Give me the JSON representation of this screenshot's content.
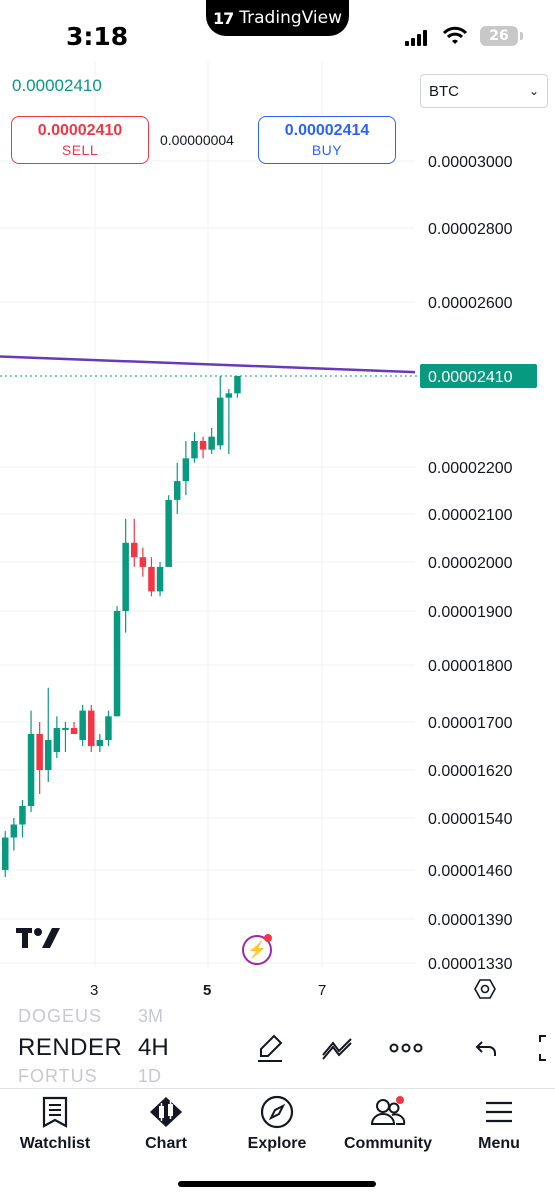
{
  "status_bar": {
    "time": "3:18",
    "island_brand": "TradingView",
    "battery": "26"
  },
  "header": {
    "last_price": "0.00002410",
    "currency": "BTC",
    "sell_price": "0.00002410",
    "sell_label": "SELL",
    "spread": "0.00000004",
    "buy_price": "0.00002414",
    "buy_label": "BUY"
  },
  "chart_data": {
    "type": "candlestick",
    "price_axis_labels": [
      "0.00003000",
      "0.00002800",
      "0.00002600",
      "0.00002200",
      "0.00002100",
      "0.00002000",
      "0.00001900",
      "0.00001800",
      "0.00001700",
      "0.00001620",
      "0.00001540",
      "0.00001460",
      "0.00001390",
      "0.00001330"
    ],
    "current_price_label": "0.00002410",
    "x_tick_labels": [
      "3",
      "5",
      "7"
    ],
    "colors": {
      "up": "#089981",
      "down": "#f23645",
      "trendline": "#673ab7",
      "price_badge": "#089981"
    },
    "trendline": {
      "start": 2.46e-05,
      "end": 2.42e-05
    },
    "candles": [
      {
        "o": 1.46e-05,
        "h": 1.52e-05,
        "l": 1.45e-05,
        "c": 1.51e-05
      },
      {
        "o": 1.51e-05,
        "h": 1.54e-05,
        "l": 1.49e-05,
        "c": 1.53e-05
      },
      {
        "o": 1.53e-05,
        "h": 1.57e-05,
        "l": 1.51e-05,
        "c": 1.56e-05
      },
      {
        "o": 1.56e-05,
        "h": 1.72e-05,
        "l": 1.55e-05,
        "c": 1.68e-05
      },
      {
        "o": 1.68e-05,
        "h": 1.7e-05,
        "l": 1.58e-05,
        "c": 1.62e-05
      },
      {
        "o": 1.62e-05,
        "h": 1.76e-05,
        "l": 1.6e-05,
        "c": 1.67e-05
      },
      {
        "o": 1.65e-05,
        "h": 1.71e-05,
        "l": 1.64e-05,
        "c": 1.69e-05
      },
      {
        "o": 1.69e-05,
        "h": 1.7e-05,
        "l": 1.65e-05,
        "c": 1.69e-05
      },
      {
        "o": 1.69e-05,
        "h": 1.7e-05,
        "l": 1.68e-05,
        "c": 1.68e-05
      },
      {
        "o": 1.67e-05,
        "h": 1.73e-05,
        "l": 1.66e-05,
        "c": 1.72e-05
      },
      {
        "o": 1.72e-05,
        "h": 1.73e-05,
        "l": 1.65e-05,
        "c": 1.66e-05
      },
      {
        "o": 1.66e-05,
        "h": 1.68e-05,
        "l": 1.65e-05,
        "c": 1.67e-05
      },
      {
        "o": 1.67e-05,
        "h": 1.72e-05,
        "l": 1.66e-05,
        "c": 1.71e-05
      },
      {
        "o": 1.71e-05,
        "h": 1.91e-05,
        "l": 1.71e-05,
        "c": 1.9e-05
      },
      {
        "o": 1.9e-05,
        "h": 2.09e-05,
        "l": 1.86e-05,
        "c": 2.04e-05
      },
      {
        "o": 2.04e-05,
        "h": 2.09e-05,
        "l": 1.99e-05,
        "c": 2.01e-05
      },
      {
        "o": 2.01e-05,
        "h": 2.03e-05,
        "l": 1.97e-05,
        "c": 1.99e-05
      },
      {
        "o": 1.99e-05,
        "h": 2.01e-05,
        "l": 1.93e-05,
        "c": 1.94e-05
      },
      {
        "o": 1.94e-05,
        "h": 2e-05,
        "l": 1.93e-05,
        "c": 1.99e-05
      },
      {
        "o": 1.99e-05,
        "h": 2.14e-05,
        "l": 1.99e-05,
        "c": 2.13e-05
      },
      {
        "o": 2.13e-05,
        "h": 2.21e-05,
        "l": 2.1e-05,
        "c": 2.17e-05
      },
      {
        "o": 2.17e-05,
        "h": 2.26e-05,
        "l": 2.14e-05,
        "c": 2.22e-05
      },
      {
        "o": 2.22e-05,
        "h": 2.28e-05,
        "l": 2.21e-05,
        "c": 2.26e-05
      },
      {
        "o": 2.26e-05,
        "h": 2.27e-05,
        "l": 2.22e-05,
        "c": 2.24e-05
      },
      {
        "o": 2.24e-05,
        "h": 2.29e-05,
        "l": 2.23e-05,
        "c": 2.27e-05
      },
      {
        "o": 2.25e-05,
        "h": 2.41e-05,
        "l": 2.24e-05,
        "c": 2.36e-05
      },
      {
        "o": 2.36e-05,
        "h": 2.38e-05,
        "l": 2.23e-05,
        "c": 2.37e-05
      },
      {
        "o": 2.37e-05,
        "h": 2.41e-05,
        "l": 2.36e-05,
        "c": 2.41e-05
      }
    ]
  },
  "strip": {
    "symbol_prev": "DOGEUS",
    "symbol_current": "RENDER",
    "symbol_next": "FORTUS",
    "interval_prev": "3M",
    "interval_current": "4H",
    "interval_next": "1D"
  },
  "nav": {
    "watchlist": "Watchlist",
    "chart": "Chart",
    "explore": "Explore",
    "community": "Community",
    "menu": "Menu"
  }
}
